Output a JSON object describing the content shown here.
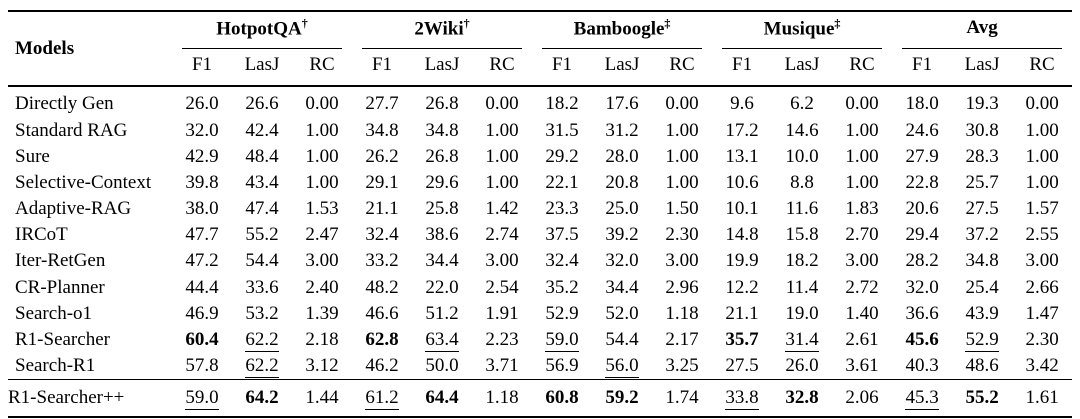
{
  "table": {
    "row_header_label": "Models",
    "groups": [
      {
        "label": "HotpotQA",
        "marker": "†"
      },
      {
        "label": "2Wiki",
        "marker": "†"
      },
      {
        "label": "Bamboogle",
        "marker": "‡"
      },
      {
        "label": "Musique",
        "marker": "‡"
      },
      {
        "label": "Avg",
        "marker": ""
      }
    ],
    "metrics": [
      "F1",
      "LasJ",
      "RC"
    ],
    "rows": [
      {
        "model": "Directly Gen",
        "values": [
          "26.0",
          "26.6",
          "0.00",
          "27.7",
          "26.8",
          "0.00",
          "18.2",
          "17.6",
          "0.00",
          "9.6",
          "6.2",
          "0.00",
          "18.0",
          "19.3",
          "0.00"
        ],
        "bold": [],
        "underline": []
      },
      {
        "model": "Standard RAG",
        "values": [
          "32.0",
          "42.4",
          "1.00",
          "34.8",
          "34.8",
          "1.00",
          "31.5",
          "31.2",
          "1.00",
          "17.2",
          "14.6",
          "1.00",
          "24.6",
          "30.8",
          "1.00"
        ],
        "bold": [],
        "underline": []
      },
      {
        "model": "Sure",
        "values": [
          "42.9",
          "48.4",
          "1.00",
          "26.2",
          "26.8",
          "1.00",
          "29.2",
          "28.0",
          "1.00",
          "13.1",
          "10.0",
          "1.00",
          "27.9",
          "28.3",
          "1.00"
        ],
        "bold": [],
        "underline": []
      },
      {
        "model": "Selective-Context",
        "values": [
          "39.8",
          "43.4",
          "1.00",
          "29.1",
          "29.6",
          "1.00",
          "22.1",
          "20.8",
          "1.00",
          "10.6",
          "8.8",
          "1.00",
          "22.8",
          "25.7",
          "1.00"
        ],
        "bold": [],
        "underline": []
      },
      {
        "model": "Adaptive-RAG",
        "values": [
          "38.0",
          "47.4",
          "1.53",
          "21.1",
          "25.8",
          "1.42",
          "23.3",
          "25.0",
          "1.50",
          "10.1",
          "11.6",
          "1.83",
          "20.6",
          "27.5",
          "1.57"
        ],
        "bold": [],
        "underline": []
      },
      {
        "model": "IRCoT",
        "values": [
          "47.7",
          "55.2",
          "2.47",
          "32.4",
          "38.6",
          "2.74",
          "37.5",
          "39.2",
          "2.30",
          "14.8",
          "15.8",
          "2.70",
          "29.4",
          "37.2",
          "2.55"
        ],
        "bold": [],
        "underline": []
      },
      {
        "model": "Iter-RetGen",
        "values": [
          "47.2",
          "54.4",
          "3.00",
          "33.2",
          "34.4",
          "3.00",
          "32.4",
          "32.0",
          "3.00",
          "19.9",
          "18.2",
          "3.00",
          "28.2",
          "34.8",
          "3.00"
        ],
        "bold": [],
        "underline": []
      },
      {
        "model": "CR-Planner",
        "values": [
          "44.4",
          "33.6",
          "2.40",
          "48.2",
          "22.0",
          "2.54",
          "35.2",
          "34.4",
          "2.96",
          "12.2",
          "11.4",
          "2.72",
          "32.0",
          "25.4",
          "2.66"
        ],
        "bold": [],
        "underline": []
      },
      {
        "model": "Search-o1",
        "values": [
          "46.9",
          "53.2",
          "1.39",
          "46.6",
          "51.2",
          "1.91",
          "52.9",
          "52.0",
          "1.18",
          "21.1",
          "19.0",
          "1.40",
          "36.6",
          "43.9",
          "1.47"
        ],
        "bold": [],
        "underline": []
      },
      {
        "model": "R1-Searcher",
        "values": [
          "60.4",
          "62.2",
          "2.18",
          "62.8",
          "63.4",
          "2.23",
          "59.0",
          "54.4",
          "2.17",
          "35.7",
          "31.4",
          "2.61",
          "45.6",
          "52.9",
          "2.30"
        ],
        "bold": [
          0,
          3,
          9,
          12
        ],
        "underline": [
          1,
          4,
          6,
          10,
          13
        ]
      },
      {
        "model": "Search-R1",
        "values": [
          "57.8",
          "62.2",
          "3.12",
          "46.2",
          "50.0",
          "3.71",
          "56.9",
          "56.0",
          "3.25",
          "27.5",
          "26.0",
          "3.61",
          "40.3",
          "48.6",
          "3.42"
        ],
        "bold": [],
        "underline": [
          1,
          7
        ]
      }
    ],
    "final_row": {
      "model": "R1-Searcher++",
      "values": [
        "59.0",
        "64.2",
        "1.44",
        "61.2",
        "64.4",
        "1.18",
        "60.8",
        "59.2",
        "1.74",
        "33.8",
        "32.8",
        "2.06",
        "45.3",
        "55.2",
        "1.61"
      ],
      "bold": [
        1,
        4,
        6,
        7,
        10,
        13
      ],
      "underline": [
        0,
        3,
        9,
        12
      ]
    }
  }
}
